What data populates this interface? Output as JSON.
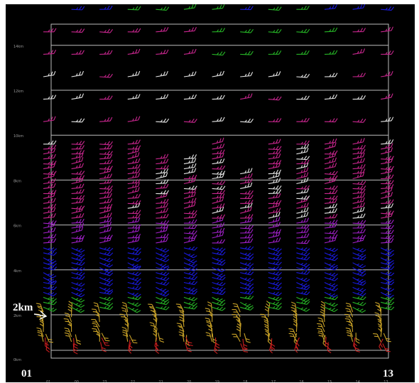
{
  "chart_data": {
    "type": "wind-profile",
    "y_tick_labels": [
      "0km",
      "2km",
      "4km",
      "6km",
      "8km",
      "10km",
      "12km",
      "14km"
    ],
    "y_ticks_km": [
      0,
      2,
      4,
      6,
      8,
      10,
      12,
      14
    ],
    "ylim": [
      -0.5,
      15.5
    ],
    "annotation": "2km",
    "annotation_km": 2,
    "x_start_label": "01",
    "x_end_label": "13",
    "x_tick_labels": [
      "01",
      "00",
      "23",
      "22",
      "21",
      "20",
      "19",
      "18",
      "17",
      "16",
      "15",
      "14",
      "13"
    ],
    "columns": 13,
    "grid": true,
    "colors": {
      "low": "#c9a227",
      "surface_red": "#c81e1e",
      "green": "#26b526",
      "blue": "#1a1adf",
      "purple": "#a020c8",
      "magenta": "#c8268e",
      "white": "#e6e6e6",
      "grid": "#bdbdbd"
    }
  }
}
